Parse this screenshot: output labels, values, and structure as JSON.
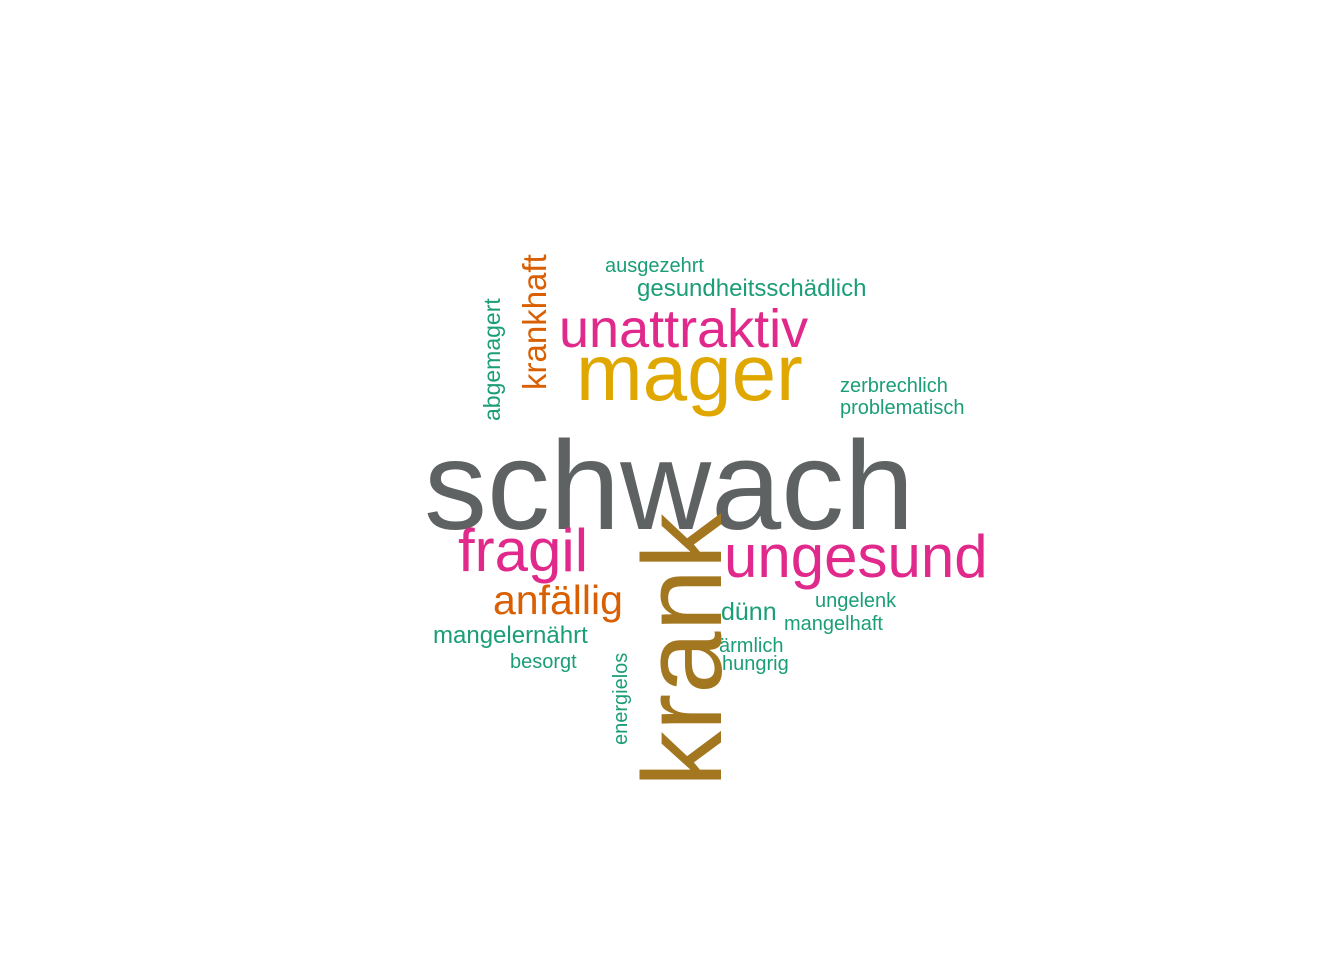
{
  "colors": {
    "gray": "#5f6263",
    "gold": "#e0a700",
    "brown": "#a37620",
    "pink": "#e0298a",
    "orange": "#d95f02",
    "teal": "#1b9e77"
  },
  "words": [
    {
      "key": "schwach",
      "text": "schwach",
      "color": "gray"
    },
    {
      "key": "krank",
      "text": "krank",
      "color": "brown"
    },
    {
      "key": "mager",
      "text": "mager",
      "color": "gold"
    },
    {
      "key": "unattraktiv",
      "text": "unattraktiv",
      "color": "pink"
    },
    {
      "key": "ungesund",
      "text": "ungesund",
      "color": "pink"
    },
    {
      "key": "fragil",
      "text": "fragil",
      "color": "pink"
    },
    {
      "key": "anfaellig",
      "text": "anfällig",
      "color": "orange"
    },
    {
      "key": "krankhaft",
      "text": "krankhaft",
      "color": "orange"
    },
    {
      "key": "abgemagert",
      "text": "abgemagert",
      "color": "teal"
    },
    {
      "key": "ausgezehrt",
      "text": "ausgezehrt",
      "color": "teal"
    },
    {
      "key": "gesundheitsschaedlich",
      "text": "gesundheitsschädlich",
      "color": "teal"
    },
    {
      "key": "zerbrechlich",
      "text": "zerbrechlich",
      "color": "teal"
    },
    {
      "key": "problematisch",
      "text": "problematisch",
      "color": "teal"
    },
    {
      "key": "mangelernaehrt",
      "text": "mangelernährt",
      "color": "teal"
    },
    {
      "key": "besorgt",
      "text": "besorgt",
      "color": "teal"
    },
    {
      "key": "energielos",
      "text": "energielos",
      "color": "teal"
    },
    {
      "key": "duenn",
      "text": "dünn",
      "color": "teal"
    },
    {
      "key": "ungelenk",
      "text": "ungelenk",
      "color": "teal"
    },
    {
      "key": "mangelhaft",
      "text": "mangelhaft",
      "color": "teal"
    },
    {
      "key": "aermlich",
      "text": "ärmlich",
      "color": "teal"
    },
    {
      "key": "hungrig",
      "text": "hungrig",
      "color": "teal"
    }
  ]
}
